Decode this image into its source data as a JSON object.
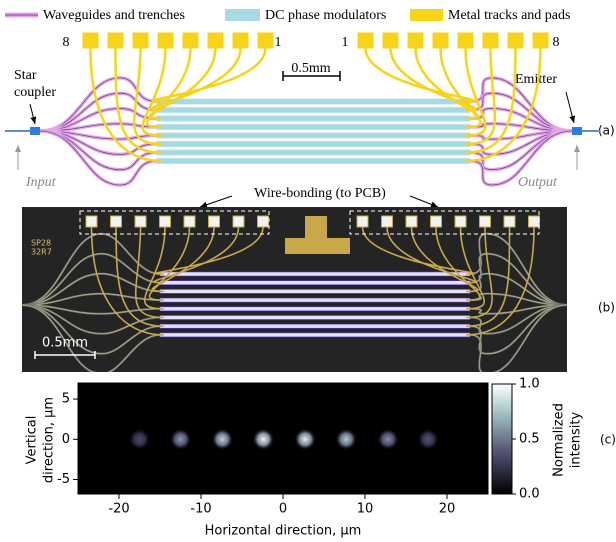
{
  "panel_a": {
    "legend": [
      "Waveguides and trenches",
      "DC phase modulators",
      "Metal tracks and pads"
    ],
    "pad_labels": [
      "8",
      "1",
      "1",
      "8"
    ],
    "scale_bar": "0.5mm",
    "star_coupler": [
      "Star",
      "coupler"
    ],
    "emitter": "Emitter",
    "input": "Input",
    "output": "Output",
    "tag": "(a)"
  },
  "panel_b": {
    "wire_bonding": "Wire-bonding (to PCB)",
    "chip_labels": [
      "SP28",
      "32R7"
    ],
    "scale_bar": "0.5mm",
    "tag": "(b)"
  },
  "chart_data": {
    "type": "spots",
    "tag": "(c)",
    "x": [
      -17.5,
      -12.5,
      -7.4,
      -2.4,
      2.7,
      7.7,
      12.8,
      17.7
    ],
    "y": [
      0,
      0,
      0,
      0,
      0,
      0,
      0,
      0
    ],
    "values": [
      0.35,
      0.62,
      0.82,
      0.95,
      0.92,
      0.78,
      0.58,
      0.38
    ],
    "xlim": [
      -25,
      25
    ],
    "ylim": [
      -6.8,
      7
    ],
    "xticks": [
      -20,
      -10,
      0,
      10,
      20
    ],
    "yticks": [
      -5,
      0,
      5
    ],
    "xlabel": "Horizontal direction, μm",
    "ylabel": [
      "Vertical",
      "direction, μm"
    ],
    "colormap": "bone",
    "clim": [
      0,
      1
    ],
    "cbar_ticks": [
      {
        "value": 0,
        "label": "0.0"
      },
      {
        "value": 0.5,
        "label": "0.5"
      },
      {
        "value": 1,
        "label": "1.0"
      }
    ],
    "cbar_label": [
      "Normalized",
      "intensity"
    ]
  }
}
